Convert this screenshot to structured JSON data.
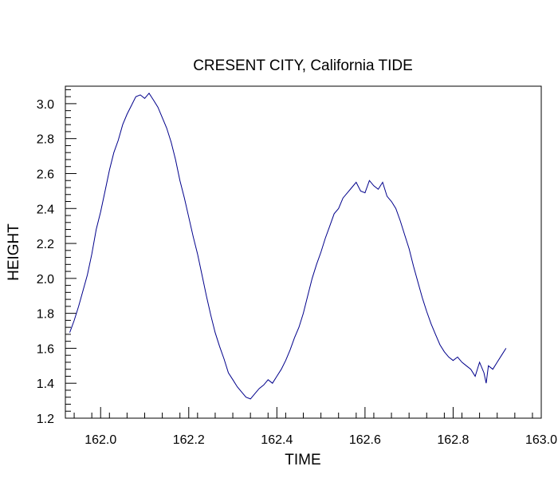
{
  "chart_data": {
    "type": "line",
    "title": "CRESENT CITY, California TIDE",
    "xlabel": "TIME",
    "ylabel": "HEIGHT",
    "xlim": [
      161.92,
      163.0
    ],
    "ylim": [
      1.2,
      3.1
    ],
    "x_ticks": [
      "162.0",
      "162.2",
      "162.4",
      "162.6",
      "162.8",
      "163.0"
    ],
    "y_ticks": [
      "1.2",
      "1.4",
      "1.6",
      "1.8",
      "2.0",
      "2.2",
      "2.4",
      "2.6",
      "2.8",
      "3.0"
    ],
    "grid": false,
    "line_color": "#00008b",
    "series": [
      {
        "x": [
          161.93,
          161.94,
          161.95,
          161.96,
          161.97,
          161.98,
          161.99,
          162.0,
          162.01,
          162.02,
          162.03,
          162.04,
          162.05,
          162.06,
          162.07,
          162.08,
          162.09,
          162.1,
          162.11,
          162.12,
          162.13,
          162.14,
          162.15,
          162.16,
          162.17,
          162.18,
          162.19,
          162.2,
          162.21,
          162.22,
          162.23,
          162.24,
          162.25,
          162.26,
          162.27,
          162.28,
          162.29,
          162.3,
          162.31,
          162.32,
          162.33,
          162.34,
          162.35,
          162.36,
          162.37,
          162.38,
          162.39,
          162.4,
          162.41,
          162.42,
          162.43,
          162.44,
          162.45,
          162.46,
          162.47,
          162.48,
          162.49,
          162.5,
          162.51,
          162.52,
          162.53,
          162.54,
          162.55,
          162.56,
          162.57,
          162.58,
          162.59,
          162.6,
          162.61,
          162.62,
          162.63,
          162.64,
          162.65,
          162.66,
          162.67,
          162.68,
          162.69,
          162.7,
          162.71,
          162.72,
          162.73,
          162.74,
          162.75,
          162.76,
          162.77,
          162.78,
          162.79,
          162.8,
          162.81,
          162.82,
          162.83,
          162.84,
          162.85,
          162.86,
          162.87,
          162.875,
          162.88,
          162.89,
          162.9,
          162.91,
          162.92
        ],
        "y": [
          1.69,
          1.76,
          1.84,
          1.93,
          2.02,
          2.14,
          2.28,
          2.38,
          2.5,
          2.62,
          2.72,
          2.79,
          2.88,
          2.94,
          2.99,
          3.04,
          3.05,
          3.03,
          3.06,
          3.02,
          2.98,
          2.92,
          2.86,
          2.78,
          2.68,
          2.56,
          2.46,
          2.35,
          2.24,
          2.14,
          2.02,
          1.9,
          1.79,
          1.69,
          1.61,
          1.54,
          1.46,
          1.42,
          1.38,
          1.35,
          1.32,
          1.31,
          1.34,
          1.37,
          1.39,
          1.42,
          1.4,
          1.44,
          1.48,
          1.53,
          1.59,
          1.66,
          1.72,
          1.8,
          1.9,
          2.0,
          2.08,
          2.15,
          2.23,
          2.3,
          2.37,
          2.4,
          2.46,
          2.49,
          2.52,
          2.55,
          2.5,
          2.49,
          2.56,
          2.53,
          2.51,
          2.55,
          2.47,
          2.44,
          2.4,
          2.33,
          2.25,
          2.17,
          2.07,
          1.98,
          1.89,
          1.81,
          1.74,
          1.68,
          1.62,
          1.58,
          1.55,
          1.53,
          1.55,
          1.52,
          1.5,
          1.48,
          1.44,
          1.52,
          1.46,
          1.4,
          1.5,
          1.48,
          1.52,
          1.56,
          1.6
        ]
      }
    ]
  }
}
